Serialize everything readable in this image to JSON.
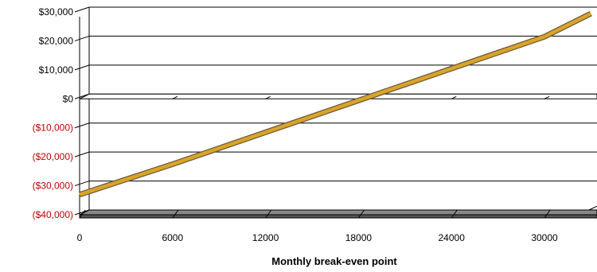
{
  "chart_data": {
    "type": "line",
    "title": "",
    "xlabel": "Monthly break-even point",
    "ylabel": "",
    "xlim": [
      0,
      33000
    ],
    "ylim": [
      -40000,
      30000
    ],
    "x_ticks": [
      0,
      6000,
      12000,
      18000,
      24000,
      30000
    ],
    "x_tick_labels": [
      "0",
      "6000",
      "12000",
      "18000",
      "24000",
      "30000"
    ],
    "y_ticks": [
      30000,
      20000,
      10000,
      0,
      -10000,
      -20000,
      -30000,
      -40000
    ],
    "y_tick_labels": [
      "$30,000",
      "$20,000",
      "$10,000",
      "$0",
      "($10,000)",
      "($20,000)",
      "($30,000)",
      "($40,000)"
    ],
    "grid": true,
    "style": "3d-wall",
    "colors": {
      "line": "#d9a42a",
      "line_outline": "#6b5a3a",
      "negative_label": "#c00000",
      "positive_label": "#000000",
      "floor": "#888888",
      "grid": "#000000"
    },
    "series": [
      {
        "x": [
          0,
          6000,
          12000,
          18000,
          24000,
          30000,
          33000
        ],
        "y": [
          -32500,
          -22000,
          -11000,
          0,
          11000,
          22000,
          30000
        ]
      }
    ]
  }
}
